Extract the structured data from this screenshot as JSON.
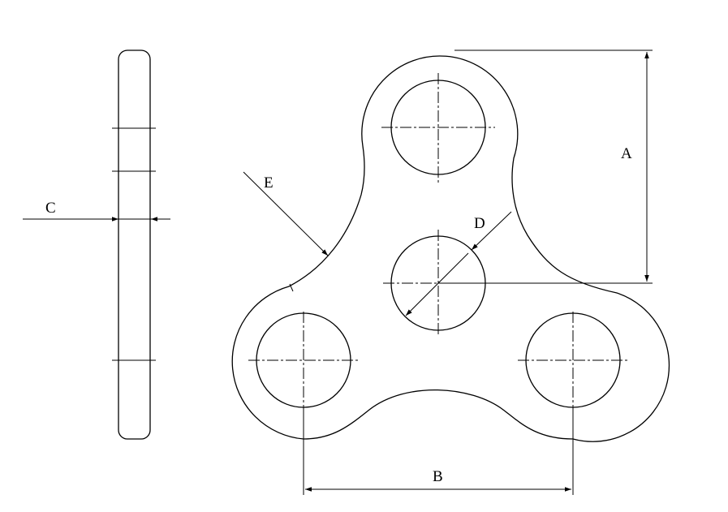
{
  "drawing": {
    "labels": {
      "A": "A",
      "B": "B",
      "C": "C",
      "D": "D",
      "E": "E"
    }
  }
}
